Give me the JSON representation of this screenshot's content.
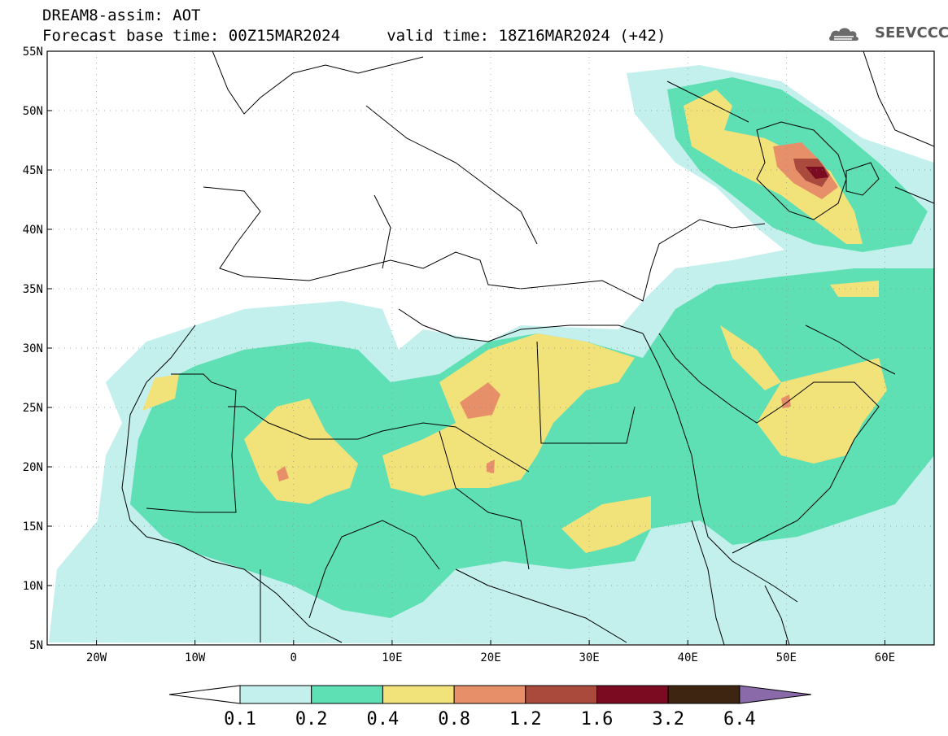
{
  "header": {
    "title_line1": "DREAM8-assim: AOT",
    "title_line2": "Forecast base time: 00Z15MAR2024     valid time: 18Z16MAR2024 (+42)",
    "logo_text": "SEEVCCC"
  },
  "map": {
    "lon_range": [
      -25,
      65
    ],
    "lat_range": [
      5,
      55
    ],
    "lat_ticks": [
      {
        "value": 55,
        "label": "55N"
      },
      {
        "value": 50,
        "label": "50N"
      },
      {
        "value": 45,
        "label": "45N"
      },
      {
        "value": 40,
        "label": "40N"
      },
      {
        "value": 35,
        "label": "35N"
      },
      {
        "value": 30,
        "label": "30N"
      },
      {
        "value": 25,
        "label": "25N"
      },
      {
        "value": 20,
        "label": "20N"
      },
      {
        "value": 15,
        "label": "15N"
      },
      {
        "value": 10,
        "label": "10N"
      },
      {
        "value": 5,
        "label": "5N"
      }
    ],
    "lon_ticks": [
      {
        "value": -20,
        "label": "20W"
      },
      {
        "value": -10,
        "label": "10W"
      },
      {
        "value": 0,
        "label": "0"
      },
      {
        "value": 10,
        "label": "10E"
      },
      {
        "value": 20,
        "label": "20E"
      },
      {
        "value": 30,
        "label": "30E"
      },
      {
        "value": 40,
        "label": "40E"
      },
      {
        "value": 50,
        "label": "50E"
      },
      {
        "value": 60,
        "label": "60E"
      }
    ]
  },
  "colorbar": {
    "labels": [
      "0.1",
      "0.2",
      "0.4",
      "0.8",
      "1.2",
      "1.6",
      "3.2",
      "6.4"
    ],
    "colors": [
      "#ffffff",
      "#c3f0ec",
      "#5fe0b4",
      "#f2e27a",
      "#e78f68",
      "#aa4a3c",
      "#7a0b20",
      "#3d2512",
      "#8a6aa8"
    ]
  },
  "aot_levels": {
    "c1": "#c3f0ec",
    "c2": "#5fe0b4",
    "c3": "#f2e27a",
    "c4": "#e78f68",
    "c5": "#aa4a3c",
    "c6": "#7a0b20"
  }
}
